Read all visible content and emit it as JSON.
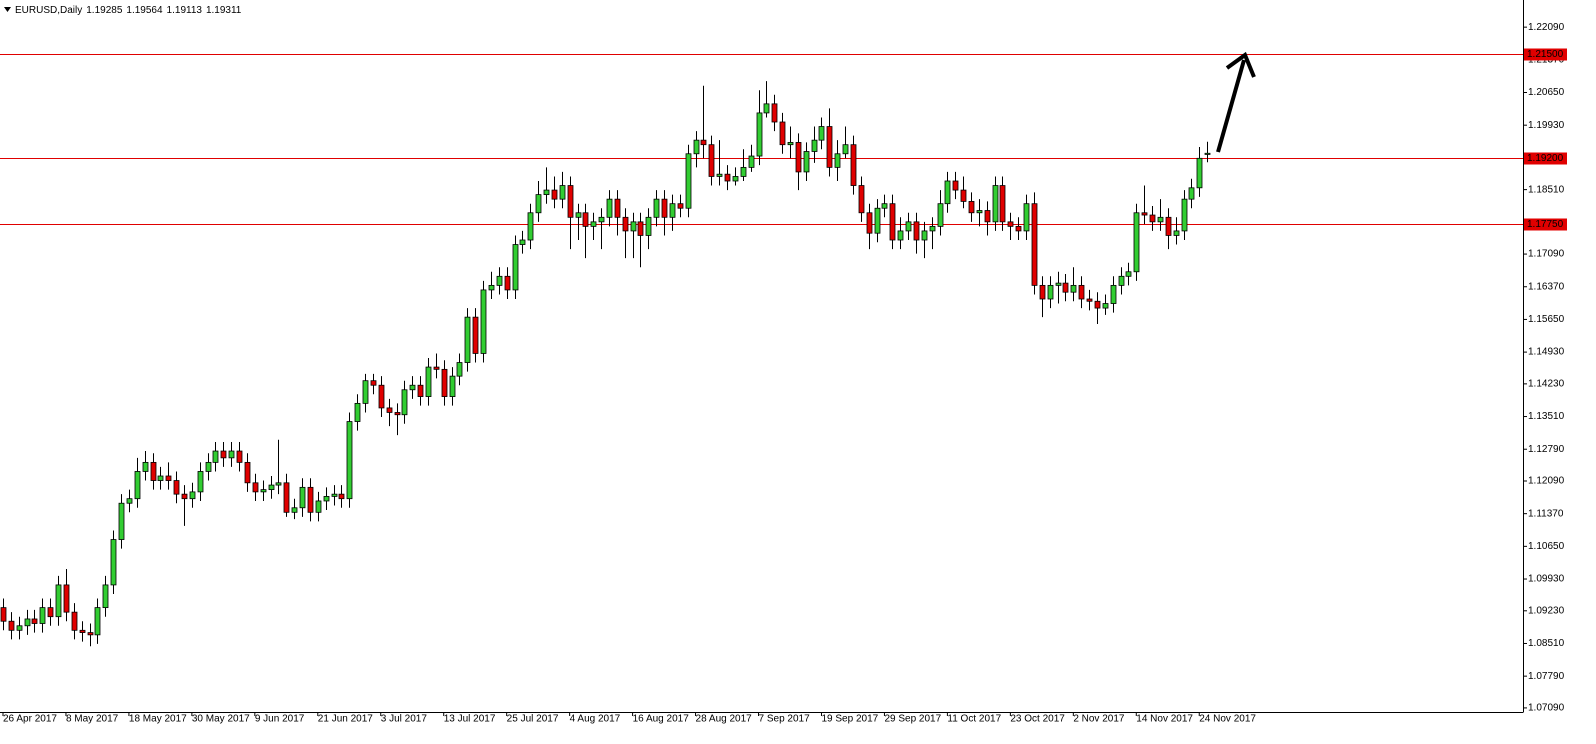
{
  "chart_data": {
    "type": "candlestick",
    "title": "EURUSD,Daily",
    "up_color": "#32cd32",
    "down_color": "#e00000",
    "level_color": "#e00000",
    "ylim": [
      1.07,
      1.226
    ],
    "yticks": [
      {
        "value": 1.2209,
        "label": "1.22090"
      },
      {
        "value": 1.2137,
        "label": "1.21370"
      },
      {
        "value": 1.2065,
        "label": "1.20650"
      },
      {
        "value": 1.1993,
        "label": "1.19930"
      },
      {
        "value": 1.1851,
        "label": "1.18510"
      },
      {
        "value": 1.1709,
        "label": "1.17090"
      },
      {
        "value": 1.1637,
        "label": "1.16370"
      },
      {
        "value": 1.1565,
        "label": "1.15650"
      },
      {
        "value": 1.1493,
        "label": "1.14930"
      },
      {
        "value": 1.1423,
        "label": "1.14230"
      },
      {
        "value": 1.1351,
        "label": "1.13510"
      },
      {
        "value": 1.1279,
        "label": "1.12790"
      },
      {
        "value": 1.1209,
        "label": "1.12090"
      },
      {
        "value": 1.1137,
        "label": "1.11370"
      },
      {
        "value": 1.1065,
        "label": "1.10650"
      },
      {
        "value": 1.0993,
        "label": "1.09930"
      },
      {
        "value": 1.0923,
        "label": "1.09230"
      },
      {
        "value": 1.0851,
        "label": "1.08510"
      },
      {
        "value": 1.0779,
        "label": "1.07790"
      },
      {
        "value": 1.0709,
        "label": "1.07090"
      }
    ],
    "levels": [
      {
        "value": 1.215,
        "label": "1.21500"
      },
      {
        "value": 1.192,
        "label": "1.19200"
      },
      {
        "value": 1.1775,
        "label": "1.17750"
      }
    ],
    "categories": [
      "26 Apr 2017",
      null,
      null,
      null,
      null,
      null,
      null,
      null,
      "8 May 2017",
      null,
      null,
      null,
      null,
      null,
      null,
      null,
      "18 May 2017",
      null,
      null,
      null,
      null,
      null,
      null,
      null,
      "30 May 2017",
      null,
      null,
      null,
      null,
      null,
      null,
      null,
      "9 Jun 2017",
      null,
      null,
      null,
      null,
      null,
      null,
      null,
      "21 Jun 2017",
      null,
      null,
      null,
      null,
      null,
      null,
      null,
      "3 Jul 2017",
      null,
      null,
      null,
      null,
      null,
      null,
      null,
      "13 Jul 2017",
      null,
      null,
      null,
      null,
      null,
      null,
      null,
      "25 Jul 2017",
      null,
      null,
      null,
      null,
      null,
      null,
      null,
      "4 Aug 2017",
      null,
      null,
      null,
      null,
      null,
      null,
      null,
      "16 Aug 2017",
      null,
      null,
      null,
      null,
      null,
      null,
      null,
      "28 Aug 2017",
      null,
      null,
      null,
      null,
      null,
      null,
      null,
      "7 Sep 2017",
      null,
      null,
      null,
      null,
      null,
      null,
      null,
      "19 Sep 2017",
      null,
      null,
      null,
      null,
      null,
      null,
      null,
      "29 Sep 2017",
      null,
      null,
      null,
      null,
      null,
      null,
      null,
      "11 Oct 2017",
      null,
      null,
      null,
      null,
      null,
      null,
      null,
      "23 Oct 2017",
      null,
      null,
      null,
      null,
      null,
      null,
      null,
      "2 Nov 2017",
      null,
      null,
      null,
      null,
      null,
      null,
      null,
      "14 Nov 2017",
      null,
      null,
      null,
      null,
      null,
      null,
      null,
      "24 Nov 2017",
      null
    ],
    "ohlc": [
      [
        1.093,
        1.095,
        1.088,
        1.09
      ],
      [
        1.09,
        1.092,
        1.086,
        1.088
      ],
      [
        1.088,
        1.091,
        1.086,
        1.089
      ],
      [
        1.089,
        1.0925,
        1.087,
        1.0905
      ],
      [
        1.0905,
        1.0925,
        1.0875,
        1.0895
      ],
      [
        1.0895,
        1.095,
        1.0875,
        1.093
      ],
      [
        1.093,
        1.095,
        1.089,
        1.091
      ],
      [
        1.091,
        1.1,
        1.089,
        1.098
      ],
      [
        1.098,
        1.1015,
        1.09,
        1.092
      ],
      [
        1.092,
        1.094,
        1.086,
        1.088
      ],
      [
        1.088,
        1.09,
        1.0855,
        1.0875
      ],
      [
        1.0875,
        1.0895,
        1.0845,
        1.087
      ],
      [
        1.087,
        1.095,
        1.085,
        1.093
      ],
      [
        1.093,
        1.1,
        1.091,
        1.098
      ],
      [
        1.098,
        1.11,
        1.096,
        1.108
      ],
      [
        1.108,
        1.118,
        1.106,
        1.116
      ],
      [
        1.116,
        1.119,
        1.114,
        1.117
      ],
      [
        1.117,
        1.126,
        1.115,
        1.123
      ],
      [
        1.123,
        1.1275,
        1.121,
        1.125
      ],
      [
        1.125,
        1.127,
        1.119,
        1.121
      ],
      [
        1.121,
        1.124,
        1.119,
        1.122
      ],
      [
        1.122,
        1.125,
        1.119,
        1.121
      ],
      [
        1.121,
        1.123,
        1.116,
        1.118
      ],
      [
        1.118,
        1.12,
        1.111,
        1.117
      ],
      [
        1.117,
        1.1205,
        1.115,
        1.1185
      ],
      [
        1.1185,
        1.125,
        1.1165,
        1.123
      ],
      [
        1.123,
        1.127,
        1.121,
        1.125
      ],
      [
        1.125,
        1.1295,
        1.123,
        1.1275
      ],
      [
        1.1275,
        1.1295,
        1.124,
        1.126
      ],
      [
        1.126,
        1.1295,
        1.124,
        1.1275
      ],
      [
        1.1275,
        1.1295,
        1.123,
        1.125
      ],
      [
        1.125,
        1.127,
        1.1185,
        1.1205
      ],
      [
        1.1205,
        1.1225,
        1.1165,
        1.1185
      ],
      [
        1.1185,
        1.121,
        1.1165,
        1.119
      ],
      [
        1.119,
        1.122,
        1.117,
        1.12
      ],
      [
        1.12,
        1.13,
        1.118,
        1.1205
      ],
      [
        1.1205,
        1.1225,
        1.113,
        1.114
      ],
      [
        1.114,
        1.117,
        1.1125,
        1.115
      ],
      [
        1.115,
        1.1215,
        1.113,
        1.1195
      ],
      [
        1.1195,
        1.1215,
        1.112,
        1.114
      ],
      [
        1.114,
        1.1185,
        1.112,
        1.1165
      ],
      [
        1.1165,
        1.1195,
        1.1145,
        1.1175
      ],
      [
        1.1175,
        1.12,
        1.1155,
        1.118
      ],
      [
        1.118,
        1.12,
        1.115,
        1.117
      ],
      [
        1.117,
        1.136,
        1.115,
        1.134
      ],
      [
        1.134,
        1.14,
        1.132,
        1.138
      ],
      [
        1.138,
        1.1445,
        1.136,
        1.143
      ],
      [
        1.143,
        1.1445,
        1.14,
        1.142
      ],
      [
        1.142,
        1.144,
        1.135,
        1.137
      ],
      [
        1.137,
        1.139,
        1.133,
        1.136
      ],
      [
        1.136,
        1.138,
        1.131,
        1.1355
      ],
      [
        1.1355,
        1.143,
        1.1335,
        1.141
      ],
      [
        1.141,
        1.144,
        1.139,
        1.142
      ],
      [
        1.142,
        1.144,
        1.1375,
        1.1395
      ],
      [
        1.1395,
        1.148,
        1.1375,
        1.146
      ],
      [
        1.146,
        1.149,
        1.1435,
        1.1455
      ],
      [
        1.1455,
        1.1475,
        1.1375,
        1.1395
      ],
      [
        1.1395,
        1.146,
        1.1375,
        1.144
      ],
      [
        1.144,
        1.149,
        1.142,
        1.147
      ],
      [
        1.147,
        1.159,
        1.145,
        1.157
      ],
      [
        1.157,
        1.159,
        1.147,
        1.149
      ],
      [
        1.149,
        1.165,
        1.147,
        1.163
      ],
      [
        1.163,
        1.167,
        1.161,
        1.164
      ],
      [
        1.164,
        1.168,
        1.162,
        1.166
      ],
      [
        1.166,
        1.168,
        1.161,
        1.163
      ],
      [
        1.163,
        1.175,
        1.161,
        1.173
      ],
      [
        1.173,
        1.176,
        1.171,
        1.174
      ],
      [
        1.174,
        1.182,
        1.172,
        1.18
      ],
      [
        1.18,
        1.187,
        1.178,
        1.184
      ],
      [
        1.184,
        1.19,
        1.182,
        1.185
      ],
      [
        1.185,
        1.188,
        1.181,
        1.183
      ],
      [
        1.183,
        1.189,
        1.181,
        1.186
      ],
      [
        1.186,
        1.188,
        1.172,
        1.179
      ],
      [
        1.179,
        1.182,
        1.174,
        1.18
      ],
      [
        1.18,
        1.182,
        1.17,
        1.177
      ],
      [
        1.177,
        1.18,
        1.174,
        1.178
      ],
      [
        1.178,
        1.181,
        1.172,
        1.179
      ],
      [
        1.179,
        1.185,
        1.177,
        1.183
      ],
      [
        1.183,
        1.185,
        1.175,
        1.179
      ],
      [
        1.179,
        1.181,
        1.17,
        1.176
      ],
      [
        1.176,
        1.18,
        1.17,
        1.178
      ],
      [
        1.178,
        1.18,
        1.168,
        1.175
      ],
      [
        1.175,
        1.181,
        1.172,
        1.179
      ],
      [
        1.179,
        1.185,
        1.177,
        1.183
      ],
      [
        1.183,
        1.185,
        1.175,
        1.179
      ],
      [
        1.179,
        1.184,
        1.176,
        1.182
      ],
      [
        1.182,
        1.184,
        1.179,
        1.181
      ],
      [
        1.181,
        1.195,
        1.179,
        1.193
      ],
      [
        1.193,
        1.198,
        1.19,
        1.196
      ],
      [
        1.196,
        1.208,
        1.192,
        1.195
      ],
      [
        1.195,
        1.197,
        1.186,
        1.188
      ],
      [
        1.188,
        1.196,
        1.186,
        1.1885
      ],
      [
        1.1885,
        1.1905,
        1.185,
        1.187
      ],
      [
        1.187,
        1.19,
        1.186,
        1.188
      ],
      [
        1.188,
        1.194,
        1.187,
        1.19
      ],
      [
        1.19,
        1.195,
        1.189,
        1.1925
      ],
      [
        1.1925,
        1.207,
        1.1905,
        1.202
      ],
      [
        1.202,
        1.209,
        1.201,
        1.204
      ],
      [
        1.204,
        1.206,
        1.198,
        1.2
      ],
      [
        1.2,
        1.202,
        1.193,
        1.195
      ],
      [
        1.195,
        1.199,
        1.192,
        1.1955
      ],
      [
        1.1955,
        1.1975,
        1.185,
        1.189
      ],
      [
        1.189,
        1.1955,
        1.187,
        1.1935
      ],
      [
        1.1935,
        1.199,
        1.191,
        1.196
      ],
      [
        1.196,
        1.201,
        1.194,
        1.199
      ],
      [
        1.199,
        1.203,
        1.188,
        1.19
      ],
      [
        1.19,
        1.196,
        1.187,
        1.193
      ],
      [
        1.193,
        1.199,
        1.192,
        1.195
      ],
      [
        1.195,
        1.197,
        1.184,
        1.186
      ],
      [
        1.186,
        1.188,
        1.178,
        1.18
      ],
      [
        1.18,
        1.182,
        1.172,
        1.1755
      ],
      [
        1.1755,
        1.183,
        1.1735,
        1.181
      ],
      [
        1.181,
        1.184,
        1.179,
        1.182
      ],
      [
        1.182,
        1.184,
        1.172,
        1.174
      ],
      [
        1.174,
        1.179,
        1.172,
        1.176
      ],
      [
        1.176,
        1.18,
        1.174,
        1.178
      ],
      [
        1.178,
        1.18,
        1.171,
        1.174
      ],
      [
        1.174,
        1.178,
        1.17,
        1.176
      ],
      [
        1.176,
        1.179,
        1.172,
        1.177
      ],
      [
        1.177,
        1.185,
        1.175,
        1.182
      ],
      [
        1.182,
        1.189,
        1.18,
        1.187
      ],
      [
        1.187,
        1.189,
        1.183,
        1.185
      ],
      [
        1.185,
        1.188,
        1.181,
        1.1825
      ],
      [
        1.1825,
        1.1845,
        1.178,
        1.18
      ],
      [
        1.18,
        1.183,
        1.177,
        1.1805
      ],
      [
        1.1805,
        1.1825,
        1.175,
        1.178
      ],
      [
        1.178,
        1.188,
        1.176,
        1.186
      ],
      [
        1.186,
        1.188,
        1.176,
        1.178
      ],
      [
        1.178,
        1.18,
        1.174,
        1.177
      ],
      [
        1.177,
        1.179,
        1.174,
        1.176
      ],
      [
        1.176,
        1.184,
        1.174,
        1.182
      ],
      [
        1.182,
        1.1845,
        1.162,
        1.164
      ],
      [
        1.164,
        1.166,
        1.157,
        1.161
      ],
      [
        1.161,
        1.166,
        1.159,
        1.164
      ],
      [
        1.164,
        1.167,
        1.16,
        1.1645
      ],
      [
        1.1645,
        1.1665,
        1.1605,
        1.1625
      ],
      [
        1.1625,
        1.168,
        1.1605,
        1.164
      ],
      [
        1.164,
        1.166,
        1.159,
        1.161
      ],
      [
        1.161,
        1.163,
        1.1585,
        1.1605
      ],
      [
        1.1605,
        1.1625,
        1.1555,
        1.159
      ],
      [
        1.159,
        1.162,
        1.1575,
        1.16
      ],
      [
        1.16,
        1.166,
        1.158,
        1.164
      ],
      [
        1.164,
        1.168,
        1.162,
        1.166
      ],
      [
        1.166,
        1.169,
        1.164,
        1.167
      ],
      [
        1.167,
        1.182,
        1.165,
        1.18
      ],
      [
        1.18,
        1.186,
        1.1775,
        1.1795
      ],
      [
        1.1795,
        1.1815,
        1.176,
        1.178
      ],
      [
        1.178,
        1.183,
        1.176,
        1.179
      ],
      [
        1.179,
        1.181,
        1.172,
        1.175
      ],
      [
        1.175,
        1.179,
        1.173,
        1.176
      ],
      [
        1.176,
        1.185,
        1.174,
        1.183
      ],
      [
        1.183,
        1.1875,
        1.181,
        1.1855
      ],
      [
        1.1855,
        1.1945,
        1.1835,
        1.192
      ],
      [
        1.19285,
        1.19564,
        1.19113,
        1.19311
      ]
    ]
  }
}
